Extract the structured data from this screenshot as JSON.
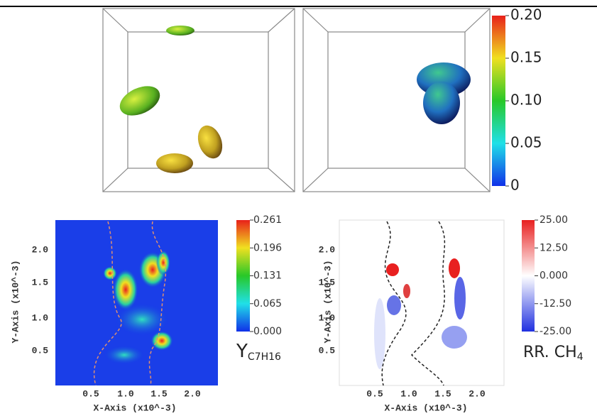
{
  "top_colorbar": {
    "ticks": [
      "0.20",
      "0.15",
      "0.10",
      "0.05",
      "0"
    ]
  },
  "panel_left": {
    "y_ticks": [
      "2.0",
      "1.5",
      "1.0",
      "0.5"
    ],
    "x_ticks": [
      "0.5",
      "1.0",
      "1.5",
      "2.0"
    ],
    "y_label": "Y-Axis (x10^-3)",
    "x_label": "X-Axis (x10^-3)",
    "colorbar": {
      "ticks": [
        "0.261",
        "0.196",
        "0.131",
        "0.065",
        "0.000"
      ],
      "label": "Y",
      "label_sub": "C7H16"
    }
  },
  "panel_right": {
    "y_ticks": [
      "2.0",
      "1.5",
      "1.0",
      "0.5"
    ],
    "x_ticks": [
      "0.5",
      "1.0",
      "1.5",
      "2.0"
    ],
    "y_label": "Y-Axis (x10^-3)",
    "x_label": "X-Axis (x10^-3)",
    "colorbar": {
      "ticks": [
        "25.00",
        "12.50",
        "0.000",
        "-12.50",
        "-25.00"
      ],
      "label": "RR. CH",
      "label_sub": "4"
    }
  }
}
